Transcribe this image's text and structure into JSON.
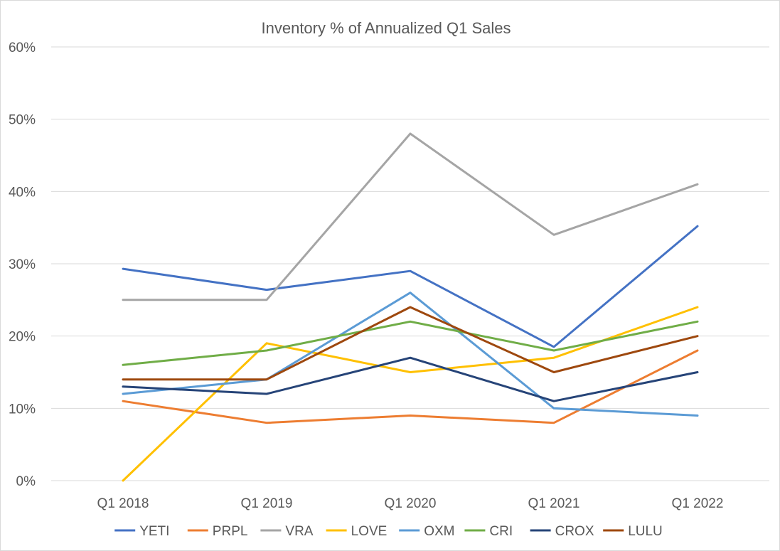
{
  "chart_data": {
    "type": "line",
    "title": "Inventory % of Annualized Q1 Sales",
    "xlabel": "",
    "ylabel": "",
    "categories": [
      "Q1 2018",
      "Q1 2019",
      "Q1 2020",
      "Q1 2021",
      "Q1 2022"
    ],
    "ylim": [
      0,
      60
    ],
    "y_ticks": [
      0,
      10,
      20,
      30,
      40,
      50,
      60
    ],
    "y_tick_labels": [
      "0%",
      "10%",
      "20%",
      "30%",
      "40%",
      "50%",
      "60%"
    ],
    "grid": true,
    "legend_position": "bottom",
    "series": [
      {
        "name": "YETI",
        "color": "#4472C4",
        "values": [
          29.3,
          26.4,
          29,
          18.5,
          35.2
        ]
      },
      {
        "name": "PRPL",
        "color": "#ED7D31",
        "values": [
          11,
          8,
          9,
          8,
          18
        ]
      },
      {
        "name": "VRA",
        "color": "#A5A5A5",
        "values": [
          25,
          25,
          48,
          34,
          41
        ]
      },
      {
        "name": "LOVE",
        "color": "#FFC000",
        "values": [
          0,
          19,
          15,
          17,
          24
        ]
      },
      {
        "name": "OXM",
        "color": "#5B9BD5",
        "values": [
          12,
          14,
          26,
          10,
          9
        ]
      },
      {
        "name": "CRI",
        "color": "#70AD47",
        "values": [
          16,
          18,
          22,
          18,
          22
        ]
      },
      {
        "name": "CROX",
        "color": "#264478",
        "values": [
          13,
          12,
          17,
          11,
          15
        ]
      },
      {
        "name": "LULU",
        "color": "#9E480E",
        "values": [
          14,
          14,
          24,
          15,
          20
        ]
      }
    ]
  }
}
